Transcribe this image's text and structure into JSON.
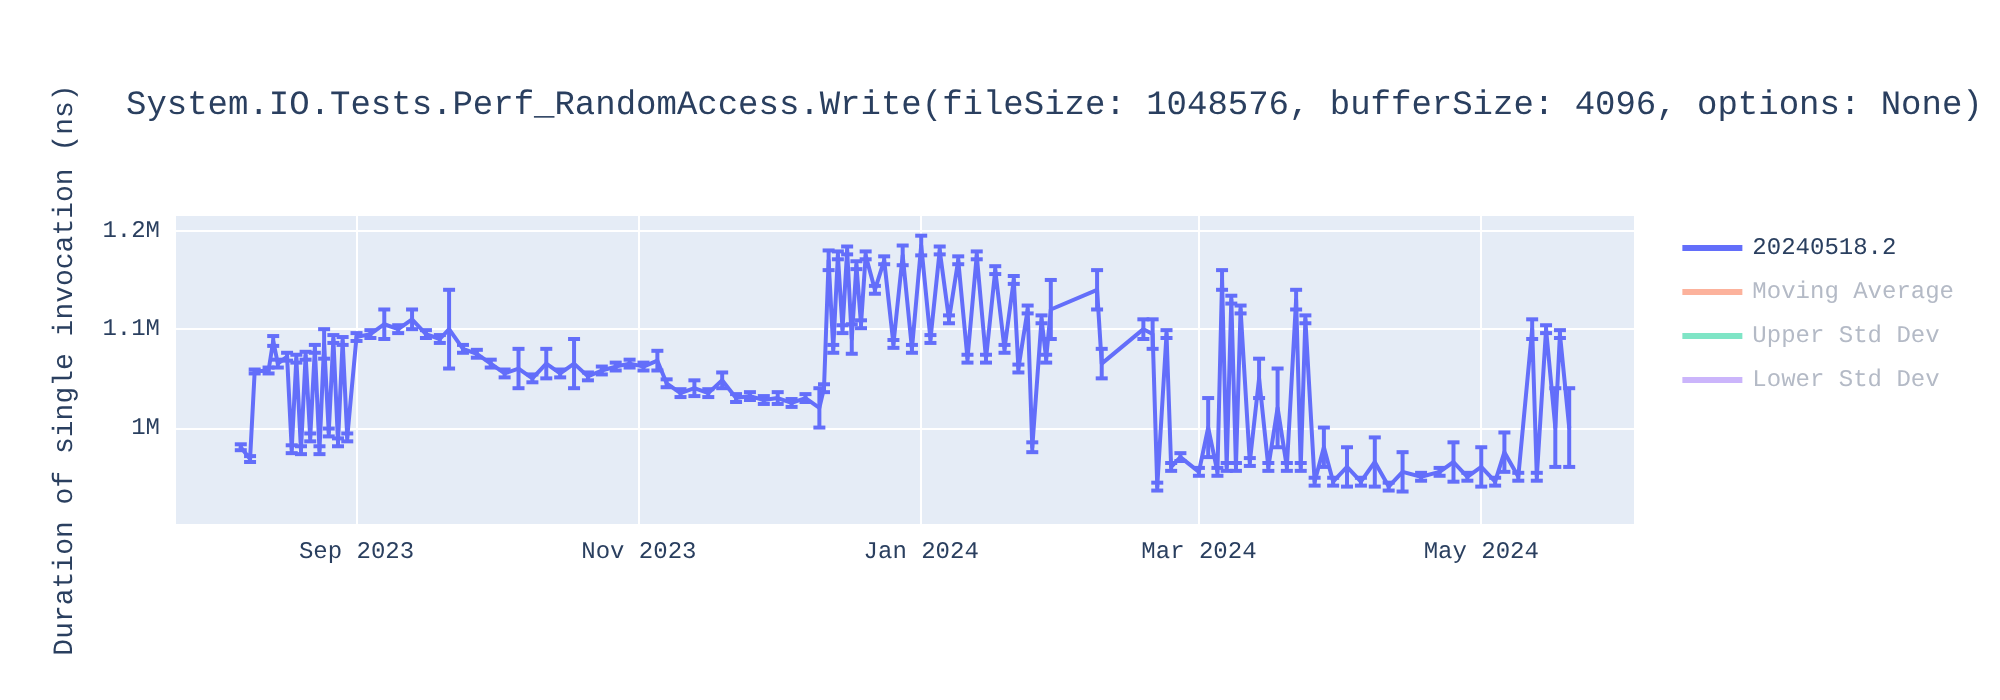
{
  "chart_data": {
    "type": "line",
    "title": "System.IO.Tests.Perf_RandomAccess.Write(fileSize: 1048576, bufferSize: 4096, options: None)",
    "ylabel": "Duration of single invocation (ns)",
    "x": [
      "2023-08-07",
      "2023-08-09",
      "2023-08-10",
      "2023-08-13",
      "2023-08-14",
      "2023-08-15",
      "2023-08-17",
      "2023-08-18",
      "2023-08-19",
      "2023-08-20",
      "2023-08-21",
      "2023-08-22",
      "2023-08-23",
      "2023-08-24",
      "2023-08-25",
      "2023-08-26",
      "2023-08-27",
      "2023-08-28",
      "2023-08-29",
      "2023-08-30",
      "2023-09-01",
      "2023-09-04",
      "2023-09-07",
      "2023-09-10",
      "2023-09-13",
      "2023-09-16",
      "2023-09-19",
      "2023-09-21",
      "2023-09-24",
      "2023-09-27",
      "2023-09-30",
      "2023-10-03",
      "2023-10-06",
      "2023-10-09",
      "2023-10-12",
      "2023-10-15",
      "2023-10-18",
      "2023-10-21",
      "2023-10-24",
      "2023-10-27",
      "2023-10-30",
      "2023-11-02",
      "2023-11-05",
      "2023-11-07",
      "2023-11-10",
      "2023-11-13",
      "2023-11-16",
      "2023-11-19",
      "2023-11-22",
      "2023-11-25",
      "2023-11-28",
      "2023-12-01",
      "2023-12-04",
      "2023-12-07",
      "2023-12-10",
      "2023-12-11",
      "2023-12-12",
      "2023-12-13",
      "2023-12-14",
      "2023-12-15",
      "2023-12-16",
      "2023-12-17",
      "2023-12-18",
      "2023-12-19",
      "2023-12-20",
      "2023-12-22",
      "2023-12-24",
      "2023-12-26",
      "2023-12-28",
      "2023-12-30",
      "2024-01-01",
      "2024-01-03",
      "2024-01-05",
      "2024-01-07",
      "2024-01-09",
      "2024-01-11",
      "2024-01-13",
      "2024-01-15",
      "2024-01-17",
      "2024-01-19",
      "2024-01-21",
      "2024-01-22",
      "2024-01-24",
      "2024-01-25",
      "2024-01-27",
      "2024-01-28",
      "2024-01-29",
      "2024-02-08",
      "2024-02-09",
      "2024-02-18",
      "2024-02-20",
      "2024-02-21",
      "2024-02-23",
      "2024-02-24",
      "2024-02-26",
      "2024-03-01",
      "2024-03-03",
      "2024-03-05",
      "2024-03-06",
      "2024-03-07",
      "2024-03-08",
      "2024-03-09",
      "2024-03-10",
      "2024-03-12",
      "2024-03-14",
      "2024-03-16",
      "2024-03-18",
      "2024-03-20",
      "2024-03-22",
      "2024-03-23",
      "2024-03-24",
      "2024-03-26",
      "2024-03-28",
      "2024-03-30",
      "2024-04-02",
      "2024-04-05",
      "2024-04-08",
      "2024-04-11",
      "2024-04-14",
      "2024-04-18",
      "2024-04-22",
      "2024-04-25",
      "2024-04-28",
      "2024-05-01",
      "2024-05-04",
      "2024-05-06",
      "2024-05-09",
      "2024-05-12",
      "2024-05-13",
      "2024-05-15",
      "2024-05-17",
      "2024-05-18",
      "2024-05-20"
    ],
    "series": [
      {
        "name": "20240518.2",
        "color": "#636efa",
        "values": [
          980000,
          968000,
          1057000,
          1058000,
          1088000,
          1065000,
          1072000,
          978000,
          1070000,
          977000,
          1073000,
          990000,
          1080000,
          977000,
          1085000,
          995000,
          1090000,
          985000,
          1088000,
          990000,
          1092000,
          1095000,
          1105000,
          1100000,
          1110000,
          1095000,
          1090000,
          1100000,
          1080000,
          1075000,
          1065000,
          1055000,
          1060000,
          1050000,
          1065000,
          1055000,
          1065000,
          1052000,
          1058000,
          1062000,
          1065000,
          1062000,
          1068000,
          1045000,
          1035000,
          1040000,
          1035000,
          1048000,
          1030000,
          1032000,
          1028000,
          1030000,
          1025000,
          1030000,
          1020000,
          1040000,
          1170000,
          1080000,
          1175000,
          1100000,
          1180000,
          1090000,
          1165000,
          1105000,
          1175000,
          1140000,
          1170000,
          1085000,
          1175000,
          1080000,
          1185000,
          1090000,
          1180000,
          1110000,
          1170000,
          1070000,
          1175000,
          1070000,
          1160000,
          1080000,
          1150000,
          1060000,
          1120000,
          980000,
          1110000,
          1070000,
          1120000,
          1140000,
          1065000,
          1100000,
          1095000,
          940000,
          1095000,
          960000,
          970000,
          955000,
          1000000,
          955000,
          1150000,
          960000,
          1130000,
          960000,
          1120000,
          965000,
          1050000,
          960000,
          1020000,
          960000,
          1130000,
          960000,
          1110000,
          945000,
          980000,
          945000,
          960000,
          945000,
          965000,
          940000,
          955000,
          950000,
          955000,
          965000,
          950000,
          960000,
          945000,
          975000,
          950000,
          1100000,
          950000,
          1100000,
          1000000,
          1095000,
          1000000
        ],
        "errors": [
          3000,
          3000,
          2000,
          3000,
          5000,
          4000,
          4000,
          4000,
          4000,
          4000,
          4000,
          4000,
          4000,
          4000,
          15000,
          4000,
          4000,
          4000,
          4000,
          4000,
          4000,
          4000,
          15000,
          4000,
          10000,
          4000,
          4000,
          40000,
          4000,
          4000,
          4000,
          4000,
          20000,
          4000,
          15000,
          4000,
          25000,
          4000,
          4000,
          4000,
          4000,
          4000,
          10000,
          4000,
          4000,
          8000,
          4000,
          8000,
          4000,
          4000,
          4000,
          6000,
          4000,
          4000,
          20000,
          4000,
          10000,
          4000,
          4000,
          4000,
          4000,
          15000,
          4000,
          4000,
          4000,
          4000,
          4000,
          4000,
          10000,
          4000,
          10000,
          4000,
          4000,
          4000,
          4000,
          4000,
          4000,
          4000,
          4000,
          4000,
          4000,
          4000,
          4000,
          5000,
          4000,
          4000,
          30000,
          20000,
          15000,
          10000,
          15000,
          4000,
          4000,
          4000,
          4000,
          4000,
          30000,
          4000,
          10000,
          4000,
          4000,
          4000,
          4000,
          4000,
          20000,
          4000,
          40000,
          4000,
          10000,
          4000,
          4000,
          4000,
          20000,
          4000,
          20000,
          4000,
          25000,
          4000,
          20000,
          4000,
          4000,
          20000,
          4000,
          20000,
          4000,
          20000,
          4000,
          10000,
          4000,
          4000,
          40000,
          4000,
          40000
        ]
      },
      {
        "name": "Moving Average",
        "color": "#fcb29c",
        "values": [
          null,
          null,
          null,
          null,
          null,
          null,
          null,
          null,
          null,
          null,
          null,
          null,
          null,
          null,
          null,
          null,
          null,
          null,
          null,
          null,
          null,
          null,
          null,
          null,
          null,
          null,
          null,
          null,
          null,
          null,
          null,
          null,
          null,
          null,
          null,
          null,
          null,
          null,
          null,
          null,
          null,
          null,
          null,
          null,
          null,
          null,
          null,
          null,
          null,
          null,
          null,
          null,
          null,
          null,
          null,
          null,
          null,
          null,
          null,
          null,
          null,
          null,
          null,
          null,
          null,
          null,
          null,
          null,
          null,
          null,
          null,
          null,
          null,
          null,
          null,
          null,
          null,
          null,
          null,
          null,
          null,
          null,
          null,
          null,
          null,
          null,
          null,
          null,
          null,
          null,
          null,
          null,
          null,
          null,
          null,
          null,
          null,
          null,
          null,
          null,
          null,
          null,
          null,
          null,
          null,
          null,
          null,
          null,
          null,
          null,
          null,
          null,
          null,
          null,
          null,
          null,
          null,
          null,
          null,
          null,
          null,
          null,
          null,
          null,
          null,
          null,
          null,
          null,
          null,
          null,
          null,
          null,
          null
        ]
      },
      {
        "name": "Upper Std Dev",
        "color": "#7fe5c6",
        "values": [
          null,
          null,
          null,
          null,
          null,
          null,
          null,
          null,
          null,
          null,
          null,
          null,
          null,
          null,
          null,
          null,
          null,
          null,
          null,
          null,
          null,
          null,
          null,
          null,
          null,
          null,
          null,
          null,
          null,
          null,
          null,
          null,
          null,
          null,
          null,
          null,
          null,
          null,
          null,
          null,
          null,
          null,
          null,
          null,
          null,
          null,
          null,
          null,
          null,
          null,
          null,
          null,
          null,
          null,
          null,
          null,
          null,
          null,
          null,
          null,
          null,
          null,
          null,
          null,
          null,
          null,
          null,
          null,
          null,
          null,
          null,
          null,
          null,
          null,
          null,
          null,
          null,
          null,
          null,
          null,
          null,
          null,
          null,
          null,
          null,
          null,
          null,
          null,
          null,
          null,
          null,
          null,
          null,
          null,
          null,
          null,
          null,
          null,
          null,
          null,
          null,
          null,
          null,
          null,
          null,
          null,
          null,
          null,
          null,
          null,
          null,
          null,
          null,
          null,
          null,
          null,
          null,
          null,
          null,
          null,
          null,
          null,
          null,
          null,
          null,
          null,
          null,
          null,
          null,
          null,
          null,
          null,
          null
        ]
      },
      {
        "name": "Lower Std Dev",
        "color": "#cbb5fb",
        "values": [
          null,
          null,
          null,
          null,
          null,
          null,
          null,
          null,
          null,
          null,
          null,
          null,
          null,
          null,
          null,
          null,
          null,
          null,
          null,
          null,
          null,
          null,
          null,
          null,
          null,
          null,
          null,
          null,
          null,
          null,
          null,
          null,
          null,
          null,
          null,
          null,
          null,
          null,
          null,
          null,
          null,
          null,
          null,
          null,
          null,
          null,
          null,
          null,
          null,
          null,
          null,
          null,
          null,
          null,
          null,
          null,
          null,
          null,
          null,
          null,
          null,
          null,
          null,
          null,
          null,
          null,
          null,
          null,
          null,
          null,
          null,
          null,
          null,
          null,
          null,
          null,
          null,
          null,
          null,
          null,
          null,
          null,
          null,
          null,
          null,
          null,
          null,
          null,
          null,
          null,
          null,
          null,
          null,
          null,
          null,
          null,
          null,
          null,
          null,
          null,
          null,
          null,
          null,
          null,
          null,
          null,
          null,
          null,
          null,
          null,
          null,
          null,
          null,
          null,
          null,
          null,
          null,
          null,
          null,
          null,
          null,
          null,
          null,
          null,
          null,
          null,
          null,
          null,
          null,
          null,
          null,
          null,
          null
        ]
      }
    ],
    "xlim": [
      "2023-07-24",
      "2024-06-03"
    ],
    "xticks": [
      {
        "value": "2023-09-01",
        "label": "Sep 2023"
      },
      {
        "value": "2023-11-01",
        "label": "Nov 2023"
      },
      {
        "value": "2024-01-01",
        "label": "Jan 2024"
      },
      {
        "value": "2024-03-01",
        "label": "Mar 2024"
      },
      {
        "value": "2024-05-01",
        "label": "May 2024"
      }
    ],
    "ylim": [
      902000,
      1215000
    ],
    "yticks": [
      {
        "value": 1000000,
        "label": "1M"
      },
      {
        "value": 1100000,
        "label": "1.1M"
      },
      {
        "value": 1200000,
        "label": "1.2M"
      }
    ],
    "grid": true,
    "legend": "top right",
    "marker": "none",
    "line_style": "solid"
  }
}
